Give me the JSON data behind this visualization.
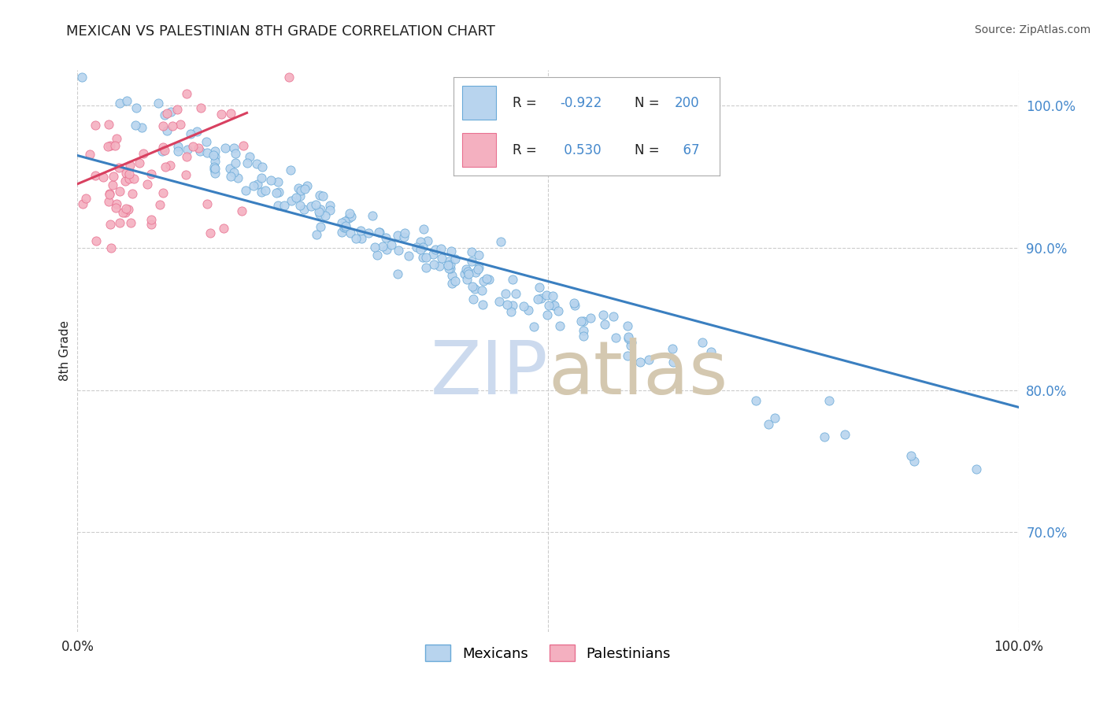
{
  "title": "MEXICAN VS PALESTINIAN 8TH GRADE CORRELATION CHART",
  "source_text": "Source: ZipAtlas.com",
  "ylabel": "8th Grade",
  "legend_blue_label": "Mexicans",
  "legend_pink_label": "Palestinians",
  "blue_R": -0.922,
  "blue_N": 200,
  "pink_R": 0.53,
  "pink_N": 67,
  "blue_color": "#b8d4ee",
  "pink_color": "#f4b0c0",
  "blue_edge_color": "#6aaad8",
  "pink_edge_color": "#e87090",
  "blue_line_color": "#3a7fc0",
  "pink_line_color": "#d84060",
  "title_color": "#222222",
  "source_color": "#555555",
  "rn_color": "#4488cc",
  "watermark_zip_color": "#ccdaee",
  "watermark_atlas_color": "#d4c8b0",
  "xlim": [
    0.0,
    1.0
  ],
  "ylim": [
    0.63,
    1.025
  ],
  "grid_color": "#cccccc",
  "background_color": "#ffffff",
  "seed": 12345,
  "blue_line_x0": 0.0,
  "blue_line_x1": 1.0,
  "blue_line_y0": 0.965,
  "blue_line_y1": 0.788,
  "pink_line_x0": 0.0,
  "pink_line_x1": 0.18,
  "pink_line_y0": 0.945,
  "pink_line_y1": 0.995
}
